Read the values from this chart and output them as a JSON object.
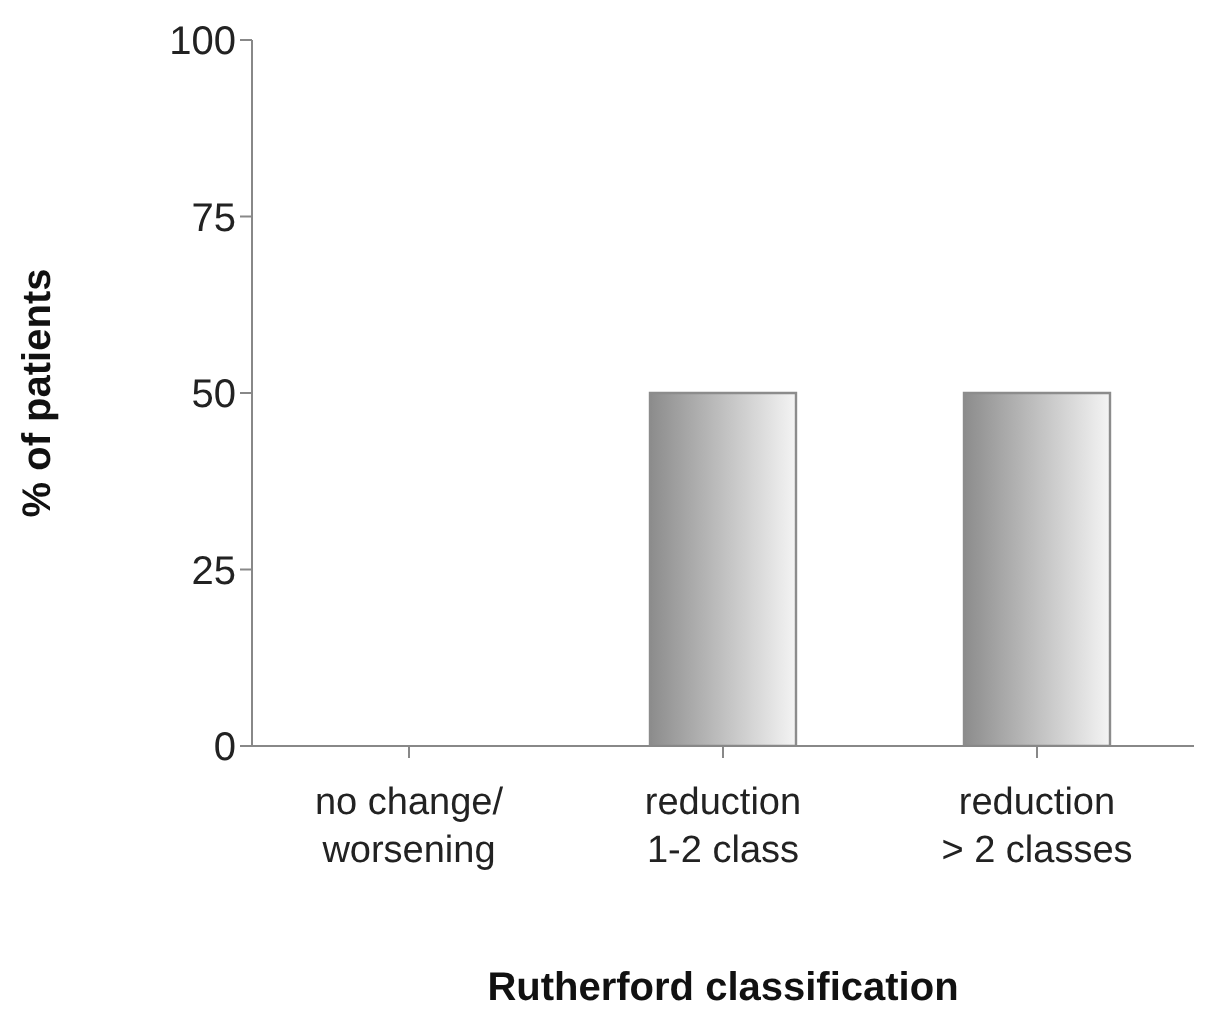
{
  "chart_data": {
    "type": "bar",
    "xlabel": "Rutherford classification",
    "ylabel": "% of patients",
    "categories": [
      "no change/ worsening",
      "reduction 1-2 class",
      "reduction > 2 classes"
    ],
    "values": [
      0,
      50,
      50
    ],
    "color": "#8c8c8c",
    "ylim": [
      0,
      100
    ],
    "yticks": [
      0,
      25,
      50,
      75,
      100
    ],
    "grid": false,
    "legend": false
  }
}
